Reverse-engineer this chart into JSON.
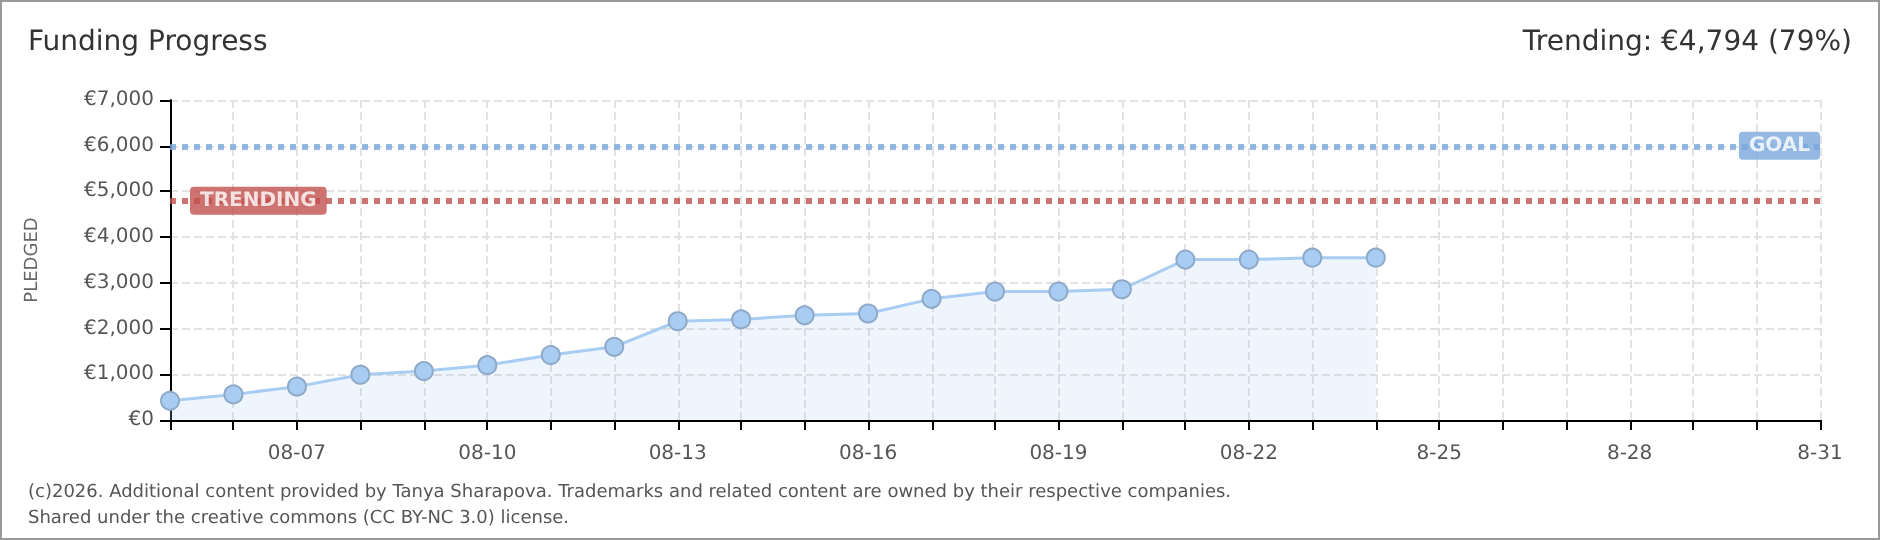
{
  "chart_data": {
    "type": "area",
    "title": "Funding Progress",
    "subtitle": "Trending: €4,794 (79%)",
    "ylabel": "PLEDGED",
    "categories": [
      null,
      null,
      "08-07",
      null,
      null,
      "08-10",
      null,
      null,
      "08-13",
      null,
      null,
      "08-16",
      null,
      null,
      "08-19",
      null,
      null,
      "08-22",
      null,
      null,
      "8-25",
      null,
      null,
      "8-28",
      null,
      null,
      "8-31"
    ],
    "series": [
      {
        "color": "#a9cdf2",
        "values": [
          420,
          560,
          730,
          990,
          1070,
          1200,
          1420,
          1600,
          2160,
          2200,
          2290,
          2330,
          2650,
          2810,
          2810,
          2860,
          3510,
          3510,
          3550,
          3550,
          null,
          null,
          null,
          null,
          null,
          null,
          null
        ]
      }
    ],
    "ylim": [
      0,
      7000
    ],
    "yticks": [
      {
        "value": 0,
        "label": "€0"
      },
      {
        "value": 1000,
        "label": "€1,000"
      },
      {
        "value": 2000,
        "label": "€2,000"
      },
      {
        "value": 3000,
        "label": "€3,000"
      },
      {
        "value": 4000,
        "label": "€4,000"
      },
      {
        "value": 5000,
        "label": "€5,000"
      },
      {
        "value": 6000,
        "label": "€6,000"
      },
      {
        "value": 7000,
        "label": "€7,000"
      }
    ],
    "ref_lines": [
      {
        "axis": "y",
        "value": 6000,
        "label": "GOAL",
        "color": "#7ba7dc",
        "line_style": "dotted"
      },
      {
        "axis": "y",
        "value": 4794,
        "label": "TRENDING",
        "color": "#c0504d",
        "line_style": "dotted"
      }
    ],
    "grid": true,
    "marker": "circle",
    "annotations": [
      "(c)2026. Additional content provided by Tanya Sharapova. Trademarks and related content are owned by their respective companies.",
      "Shared under the creative commons (CC BY-NC 3.0) license."
    ]
  }
}
